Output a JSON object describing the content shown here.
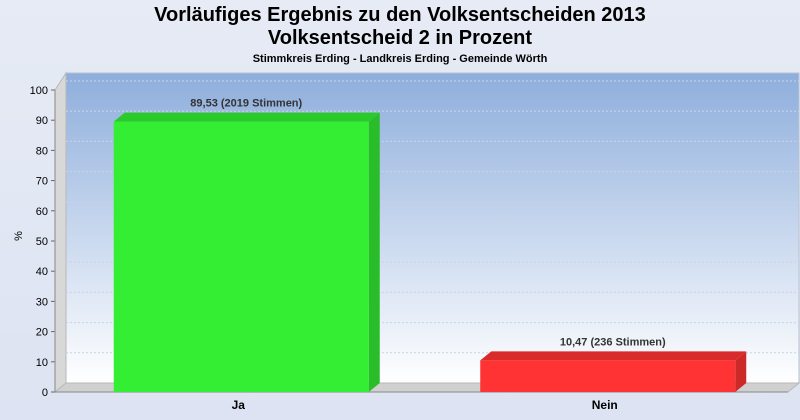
{
  "chart_data": {
    "type": "bar",
    "title": "Vorläufiges Ergebnis zu den Volksentscheiden 2013",
    "title2": "Volksentscheid 2 in Prozent",
    "subtitle": "Stimmkreis Erding - Landkreis Erding - Gemeinde Wörth",
    "ylabel": "%",
    "xlabel": "",
    "ylim": [
      0,
      100
    ],
    "yticks": [
      "0",
      "10",
      "20",
      "30",
      "40",
      "50",
      "60",
      "70",
      "80",
      "90",
      "100"
    ],
    "categories": [
      "Ja",
      "Nein"
    ],
    "values": [
      89.53,
      10.47
    ],
    "data_labels": [
      "89,53 (2019 Stimmen)",
      "10,47 (236 Stimmen)"
    ],
    "colors": [
      "#33ee33",
      "#ff3333"
    ],
    "grid": true
  }
}
